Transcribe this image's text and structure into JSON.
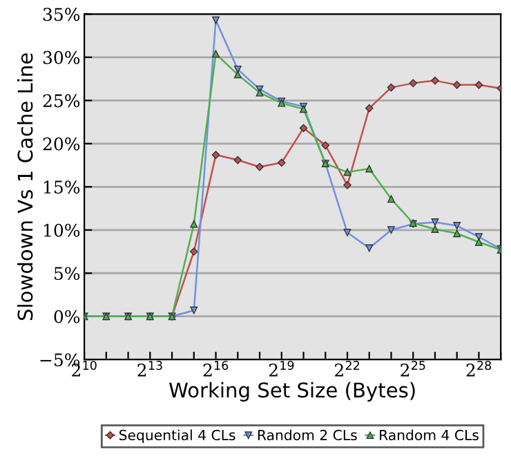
{
  "chart_data": {
    "type": "line",
    "xlabel": "Working Set Size (Bytes)",
    "ylabel": "Slowdown Vs 1 Cache Line",
    "x": [
      1024,
      2048,
      4096,
      8192,
      16384,
      32768,
      65536,
      131072,
      262144,
      524288,
      1048576,
      2097152,
      4194304,
      8388608,
      16777216,
      33554432,
      67108864,
      134217728,
      268435456,
      536870912
    ],
    "series": [
      {
        "name": "Sequential 4 CLs",
        "color": "#c0504d",
        "marker": "diamond",
        "values": [
          null,
          null,
          null,
          0,
          0,
          7.5,
          18.7,
          18.1,
          17.3,
          17.8,
          21.8,
          19.8,
          15.2,
          24.1,
          26.5,
          27.0,
          27.3,
          26.8,
          26.8,
          26.4
        ]
      },
      {
        "name": "Random 2 CLs",
        "color": "#7090e0",
        "marker": "triangle_down",
        "values": [
          0,
          0,
          0,
          0,
          0,
          0.7,
          34.3,
          28.6,
          26.3,
          24.9,
          24.3,
          17.7,
          9.7,
          7.9,
          10.0,
          10.7,
          10.9,
          10.5,
          9.2,
          7.8
        ]
      },
      {
        "name": "Random 4 CLs",
        "color": "#50b050",
        "marker": "triangle",
        "values": [
          0,
          0,
          0,
          0,
          0,
          10.7,
          30.4,
          28.0,
          25.9,
          24.7,
          24.0,
          17.7,
          16.7,
          17.1,
          13.6,
          10.8,
          10.1,
          9.6,
          8.6,
          7.7
        ]
      }
    ],
    "log": "x",
    "xlim": [
      1024,
      536870912
    ],
    "xticks": [
      {
        "value": 1024,
        "label": "2$^{10}$"
      },
      {
        "value": 2048,
        "label": null
      },
      {
        "value": 4096,
        "label": null
      },
      {
        "value": 8192,
        "label": "2$^{13}$"
      },
      {
        "value": 16384,
        "label": null
      },
      {
        "value": 32768,
        "label": null
      },
      {
        "value": 65536,
        "label": "2$^{16}$"
      },
      {
        "value": 131072,
        "label": null
      },
      {
        "value": 262144,
        "label": null
      },
      {
        "value": 524288,
        "label": "2$^{19}$"
      },
      {
        "value": 1048576,
        "label": null
      },
      {
        "value": 2097152,
        "label": null
      },
      {
        "value": 4194304,
        "label": "2$^{22}$"
      },
      {
        "value": 8388608,
        "label": null
      },
      {
        "value": 16777216,
        "label": null
      },
      {
        "value": 33554432,
        "label": "2$^{25}$"
      },
      {
        "value": 67108864,
        "label": null
      },
      {
        "value": 134217728,
        "label": null
      },
      {
        "value": 268435456,
        "label": "2$^{28}$"
      },
      {
        "value": 536870912,
        "label": null
      }
    ],
    "ylim": [
      -5,
      35
    ],
    "yticks": [
      {
        "value": -5,
        "label": "−5%"
      },
      {
        "value": 0,
        "label": "0%"
      },
      {
        "value": 5,
        "label": "5%"
      },
      {
        "value": 10,
        "label": "10%"
      },
      {
        "value": 15,
        "label": "15%"
      },
      {
        "value": 20,
        "label": "20%"
      },
      {
        "value": 25,
        "label": "25%"
      },
      {
        "value": 30,
        "label": "30%"
      },
      {
        "value": 35,
        "label": "35%"
      }
    ],
    "grid": "y",
    "legend": "bottom"
  }
}
